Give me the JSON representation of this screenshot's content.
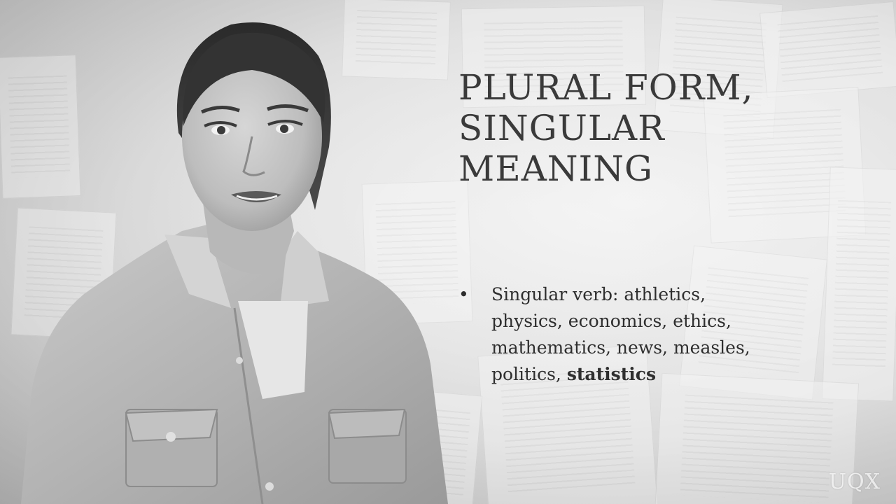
{
  "slide": {
    "title_lines": [
      "PLURAL FORM,",
      "SINGULAR",
      "MEANING"
    ],
    "bullet": {
      "marker": "•",
      "lines": [
        "Singular verb: athletics,",
        "physics, economics, ethics,",
        "mathematics, news, measles,"
      ],
      "last_line_prefix": "politics, ",
      "last_line_emphasis": "statistics"
    }
  },
  "watermark": "UQX"
}
